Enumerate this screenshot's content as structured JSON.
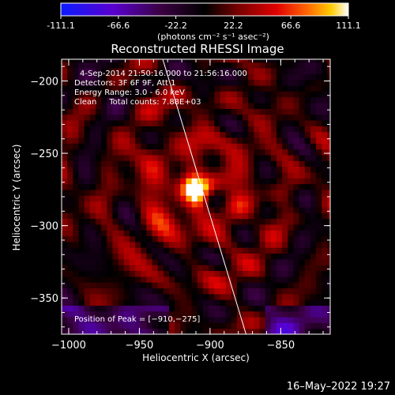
{
  "colorbar": {
    "ticks": [
      "-111.1",
      "-66.6",
      "-22.2",
      "22.2",
      "66.6",
      "111.1"
    ],
    "range": [
      -111.1,
      111.1
    ],
    "unit_label": "(photons cm⁻² s⁻¹ asec⁻²)"
  },
  "chart_data": {
    "type": "heatmap",
    "title": "Reconstructed RHESSI Image",
    "xlabel": "Heliocentric X (arcsec)",
    "ylabel": "Heliocentric Y (arcsec)",
    "xlim": [
      -1005,
      -815
    ],
    "ylim": [
      -375,
      -185
    ],
    "xticks": [
      -1000,
      -950,
      -900,
      -850
    ],
    "yticks": [
      -200,
      -250,
      -300,
      -350
    ],
    "xtick_labels": [
      "−1000",
      "−950",
      "−900",
      "−850"
    ],
    "ytick_labels": [
      "−200",
      "−250",
      "−300",
      "−350"
    ],
    "peak": {
      "x": -910,
      "y": -275,
      "value": 111.1
    },
    "limb_line": [
      [
        -935,
        -180
      ],
      [
        -873,
        -380
      ]
    ],
    "annotations": [
      "4-Sep-2014 21:50:16.000 to 21:56:16.000",
      "Detectors: 3F 6F 9F, Att 1",
      "Energy Range: 3.0 - 6.0 keV",
      "Clean     Total counts: 7.88E+03"
    ],
    "peak_label": "Position of Peak = [−910,−275]",
    "colormap": "rainbow/fire: blue-purple (negative) to red-orange-yellow-white (positive)"
  },
  "footer": {
    "date": "16–May–2022 19:27"
  }
}
